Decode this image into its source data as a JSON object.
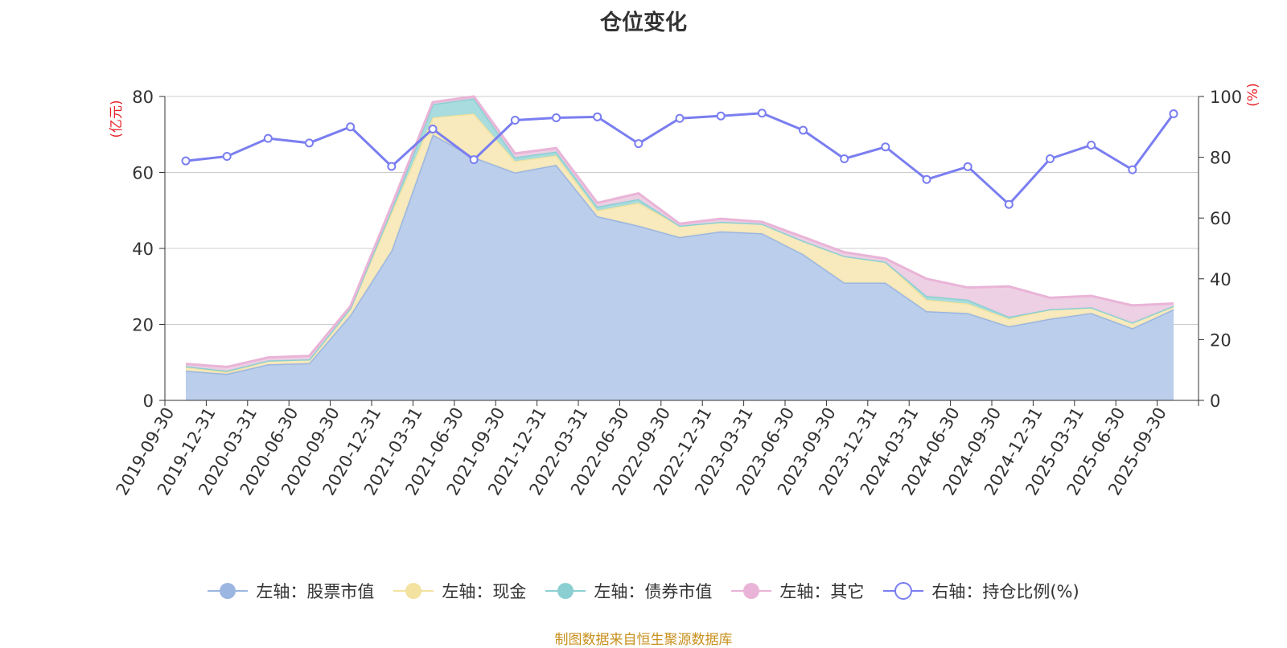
{
  "title": "仓位变化",
  "source_note": "制图数据来自恒生聚源数据库",
  "chart_data": {
    "type": "area",
    "title": "仓位变化",
    "left_axis_unit": "(亿元)",
    "right_axis_unit": "(%)",
    "left_ylim": [
      0,
      80
    ],
    "right_ylim": [
      0,
      100
    ],
    "left_ticks": [
      "0",
      "20",
      "40",
      "60",
      "80"
    ],
    "right_ticks": [
      "0",
      "20",
      "40",
      "60",
      "80",
      "100"
    ],
    "grid": true,
    "legend_position": "bottom",
    "categories": [
      "2019-09-30",
      "2019-12-31",
      "2020-03-31",
      "2020-06-30",
      "2020-09-30",
      "2020-12-31",
      "2021-03-31",
      "2021-06-30",
      "2021-09-30",
      "2021-12-31",
      "2022-03-31",
      "2022-06-30",
      "2022-09-30",
      "2022-12-31",
      "2023-03-31",
      "2023-06-30",
      "2023-09-30",
      "2023-12-31",
      "2024-03-31",
      "2024-06-30",
      "2024-09-30",
      "2024-12-31",
      "2025-03-31",
      "2025-06-30",
      "2025-09-30"
    ],
    "series": [
      {
        "name": "左轴：股票市值",
        "axis": "left",
        "color": "#9bb6e0",
        "fill": "#b7cbea",
        "values": [
          7.8,
          7.0,
          9.5,
          9.8,
          22.5,
          39.5,
          70.0,
          64.0,
          60.0,
          62.0,
          48.5,
          46.0,
          43.0,
          44.5,
          44.0,
          38.5,
          31.0,
          31.0,
          23.5,
          23.0,
          19.5,
          21.5,
          23.0,
          19.0,
          24.0
        ]
      },
      {
        "name": "左轴：现金",
        "axis": "left",
        "color": "#f3e2a0",
        "fill": "#f8e9b8",
        "values": [
          1.0,
          0.5,
          1.0,
          1.0,
          1.8,
          10.0,
          4.5,
          11.5,
          3.0,
          2.5,
          1.5,
          6.0,
          3.0,
          2.5,
          2.5,
          3.5,
          7.0,
          5.5,
          3.0,
          2.5,
          2.0,
          2.5,
          1.5,
          1.5,
          0.9
        ]
      },
      {
        "name": "左轴：债券市值",
        "axis": "left",
        "color": "#8ccfd2",
        "fill": "#a3dadc",
        "values": [
          0.2,
          0.3,
          0.0,
          0.0,
          0.0,
          0.8,
          3.5,
          4.0,
          1.0,
          1.0,
          1.0,
          1.0,
          0.0,
          0.0,
          0.0,
          0.0,
          0.0,
          0.0,
          1.0,
          1.0,
          0.5,
          0.0,
          0.0,
          0.0,
          0.0
        ]
      },
      {
        "name": "左轴：其它",
        "axis": "left",
        "color": "#e9b4d7",
        "fill": "#edcde3",
        "values": [
          0.6,
          1.0,
          0.8,
          0.9,
          0.5,
          1.0,
          0.5,
          0.5,
          1.0,
          0.9,
          1.0,
          1.5,
          0.5,
          0.8,
          0.5,
          1.0,
          1.0,
          0.8,
          4.5,
          3.2,
          8.0,
          3.0,
          3.0,
          4.5,
          0.6
        ]
      },
      {
        "name": "右轴：持仓比例(%)",
        "axis": "right",
        "color": "#7a7ef0",
        "values": [
          78.8,
          80.3,
          86.2,
          84.7,
          90.0,
          77.0,
          89.3,
          79.2,
          92.2,
          93.0,
          93.3,
          84.5,
          92.8,
          93.6,
          94.5,
          88.9,
          79.5,
          83.4,
          72.7,
          76.9,
          64.5,
          79.5,
          84.0,
          75.9,
          94.3
        ]
      }
    ]
  }
}
